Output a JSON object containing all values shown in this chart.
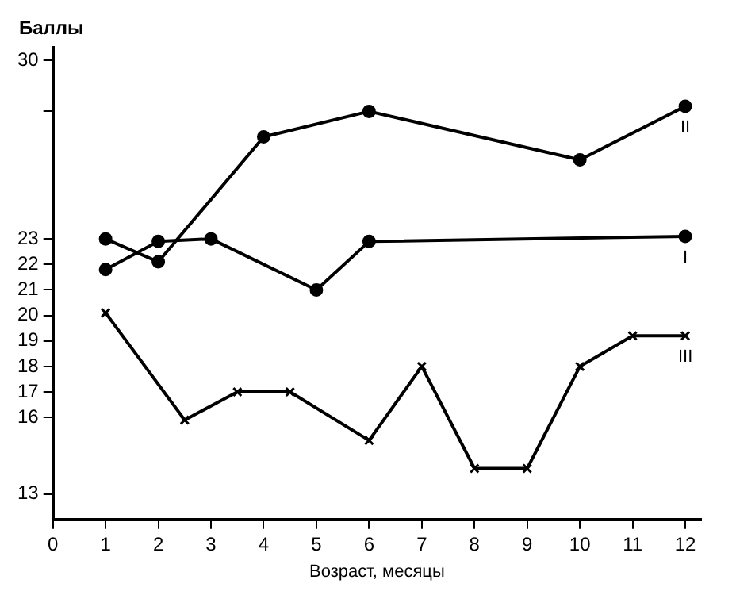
{
  "chart_data": {
    "type": "line",
    "ylabel": "Баллы",
    "xlabel": "Возраст, месяцы",
    "xlim": [
      0,
      12.3
    ],
    "xticks": [
      0,
      1,
      2,
      3,
      4,
      5,
      6,
      7,
      8,
      9,
      10,
      11,
      12
    ],
    "ylim": [
      12,
      30.5
    ],
    "yticks": [
      13,
      16,
      17,
      18,
      19,
      20,
      21,
      22,
      23,
      {
        "value": 28,
        "label": null
      },
      30
    ],
    "grid": false,
    "legend": false,
    "line_style": "solid",
    "series": [
      {
        "name": "II",
        "color": "#000000",
        "marker": "circle",
        "x": [
          1,
          2,
          4,
          6,
          10,
          12
        ],
        "values": [
          23,
          22.1,
          27,
          28,
          26.1,
          28.2
        ]
      },
      {
        "name": "I",
        "color": "#000000",
        "marker": "circle",
        "x": [
          1,
          2,
          3,
          5,
          6,
          12
        ],
        "values": [
          21.8,
          22.9,
          23,
          21,
          22.9,
          23.1
        ]
      },
      {
        "name": "III",
        "color": "#000000",
        "marker": "cross",
        "x": [
          1,
          2.5,
          3.5,
          4.5,
          6,
          7,
          8,
          9,
          10,
          11,
          12
        ],
        "values": [
          20.1,
          15.9,
          17,
          17,
          15.1,
          18,
          14,
          14,
          18,
          19.2,
          19.2
        ]
      }
    ]
  }
}
